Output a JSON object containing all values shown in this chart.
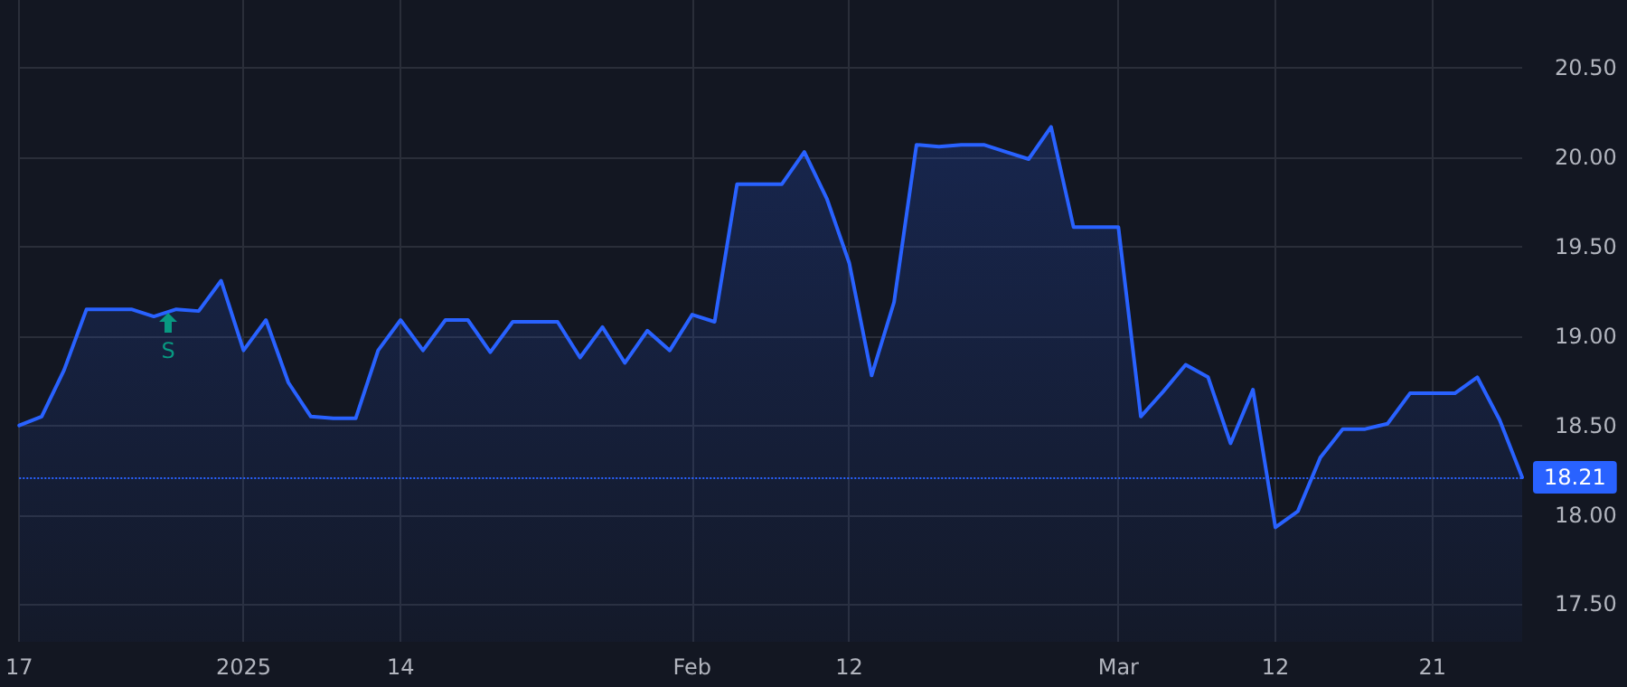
{
  "chart_data": {
    "type": "area",
    "categories": [
      "17",
      null,
      null,
      null,
      null,
      null,
      null,
      null,
      null,
      null,
      "2025",
      null,
      null,
      null,
      null,
      null,
      null,
      "14",
      null,
      null,
      null,
      null,
      null,
      null,
      null,
      null,
      null,
      null,
      null,
      null,
      "Feb",
      null,
      null,
      null,
      null,
      null,
      null,
      "12",
      null,
      null,
      null,
      null,
      null,
      null,
      null,
      null,
      null,
      null,
      null,
      "Mar",
      null,
      null,
      null,
      null,
      null,
      null,
      "12",
      null,
      null,
      null,
      null,
      null,
      null,
      "21",
      null,
      null,
      null,
      null
    ],
    "series": [
      {
        "color": "#2962ff",
        "values": [
          18.5,
          18.55,
          18.81,
          19.15,
          19.15,
          19.15,
          19.11,
          19.15,
          19.14,
          19.31,
          18.92,
          19.09,
          18.74,
          18.55,
          18.54,
          18.54,
          18.92,
          19.09,
          18.92,
          19.09,
          19.09,
          18.91,
          19.08,
          19.08,
          19.08,
          18.88,
          19.05,
          18.85,
          19.03,
          18.92,
          19.12,
          19.08,
          19.85,
          19.85,
          19.85,
          20.03,
          19.77,
          19.41,
          18.78,
          19.19,
          20.07,
          20.06,
          20.07,
          20.07,
          20.03,
          19.99,
          20.17,
          19.61,
          19.61,
          19.61,
          18.55,
          18.69,
          18.84,
          18.77,
          18.4,
          18.7,
          17.93,
          18.02,
          18.32,
          18.48,
          18.48,
          18.51,
          18.68,
          18.68,
          18.68,
          18.77,
          18.53,
          18.21
        ]
      }
    ],
    "ylim": [
      17.29,
      20.88
    ],
    "yticks": [
      {
        "value": 17.5,
        "label": "17.50"
      },
      {
        "value": 18,
        "label": "18.00"
      },
      {
        "value": 18.5,
        "label": "18.50"
      },
      {
        "value": 19,
        "label": "19.00"
      },
      {
        "value": 19.5,
        "label": "19.50"
      },
      {
        "value": 20,
        "label": "20.00"
      },
      {
        "value": 20.5,
        "label": "20.50"
      }
    ],
    "ref_lines": [
      {
        "axis": "y",
        "value": 18.21,
        "label": "18.21",
        "color": "#2962ff",
        "line_style": "dotted"
      }
    ],
    "annotations": [
      "S"
    ],
    "grid": true,
    "marker": "none",
    "line_style": "solid"
  }
}
